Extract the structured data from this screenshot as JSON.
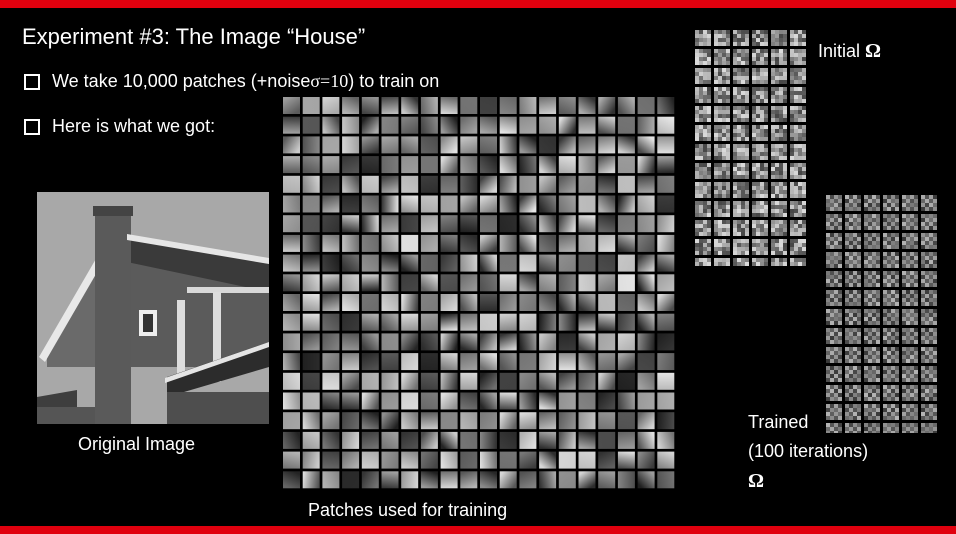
{
  "slide": {
    "title": "Experiment #3: The Image “House”",
    "bullets": [
      {
        "pre": "We take 10,000 patches (+noise ",
        "symbol": "σ=10",
        "post": ") to train on"
      },
      {
        "pre": "Here is what we got:",
        "symbol": "",
        "post": ""
      }
    ],
    "original_caption": "Original Image",
    "patches_caption": "Patches used for training",
    "initial_label": "Initial",
    "initial_symbol": "Ω",
    "trained_label_line1": "Trained",
    "trained_label_line2": "(100 iterations)",
    "trained_symbol": "Ω"
  },
  "grids": {
    "patches": {
      "rows": 20,
      "cols": 20,
      "pattern": "smooth"
    },
    "initial": {
      "rows": 13,
      "cols": 6,
      "pattern": "noise"
    },
    "trained": {
      "rows": 14,
      "cols": 6,
      "pattern": "checker"
    }
  },
  "colors": {
    "accent_bar": "#e0000e",
    "background": "#000000",
    "text": "#ffffff"
  }
}
